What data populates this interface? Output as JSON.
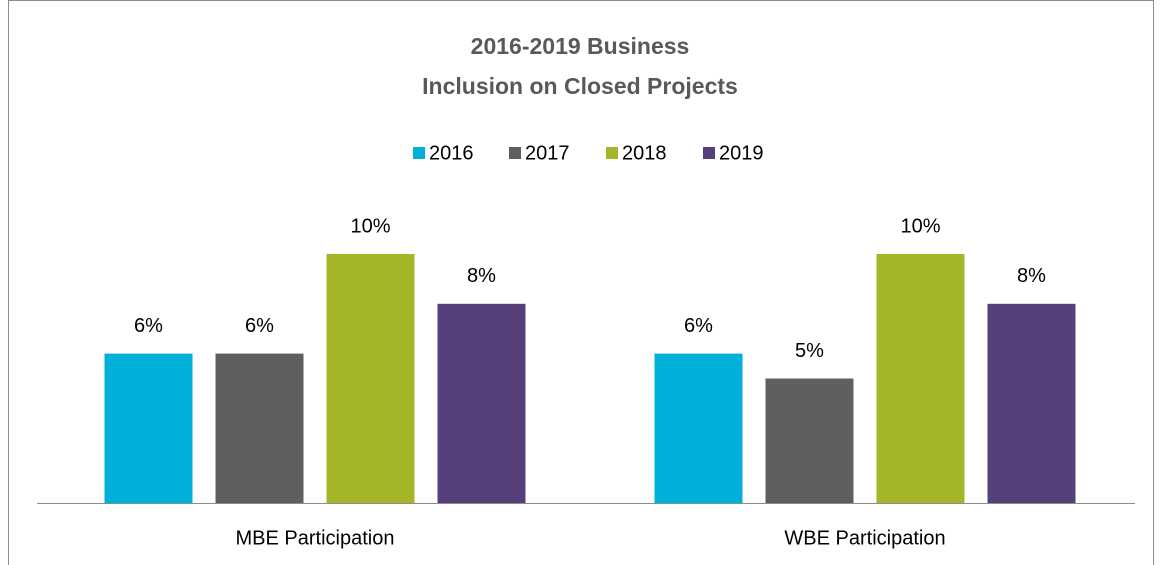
{
  "chart_data": {
    "type": "bar",
    "title": [
      "2016-2019 Business",
      "Inclusion on Closed Projects"
    ],
    "categories": [
      "MBE Participation",
      "WBE Participation"
    ],
    "series": [
      {
        "name": "2016",
        "color": "#00b0d8",
        "values": [
          6,
          6
        ],
        "value_labels": [
          "6%",
          "6%"
        ]
      },
      {
        "name": "2017",
        "color": "#5f5f5f",
        "values": [
          6,
          5
        ],
        "value_labels": [
          "6%",
          "5%"
        ]
      },
      {
        "name": "2018",
        "color": "#a5b52a",
        "values": [
          10,
          10
        ],
        "value_labels": [
          "10%",
          "10%"
        ]
      },
      {
        "name": "2019",
        "color": "#573f7c",
        "values": [
          8,
          8
        ],
        "value_labels": [
          "8%",
          "8%"
        ]
      }
    ],
    "legend": "top"
  }
}
